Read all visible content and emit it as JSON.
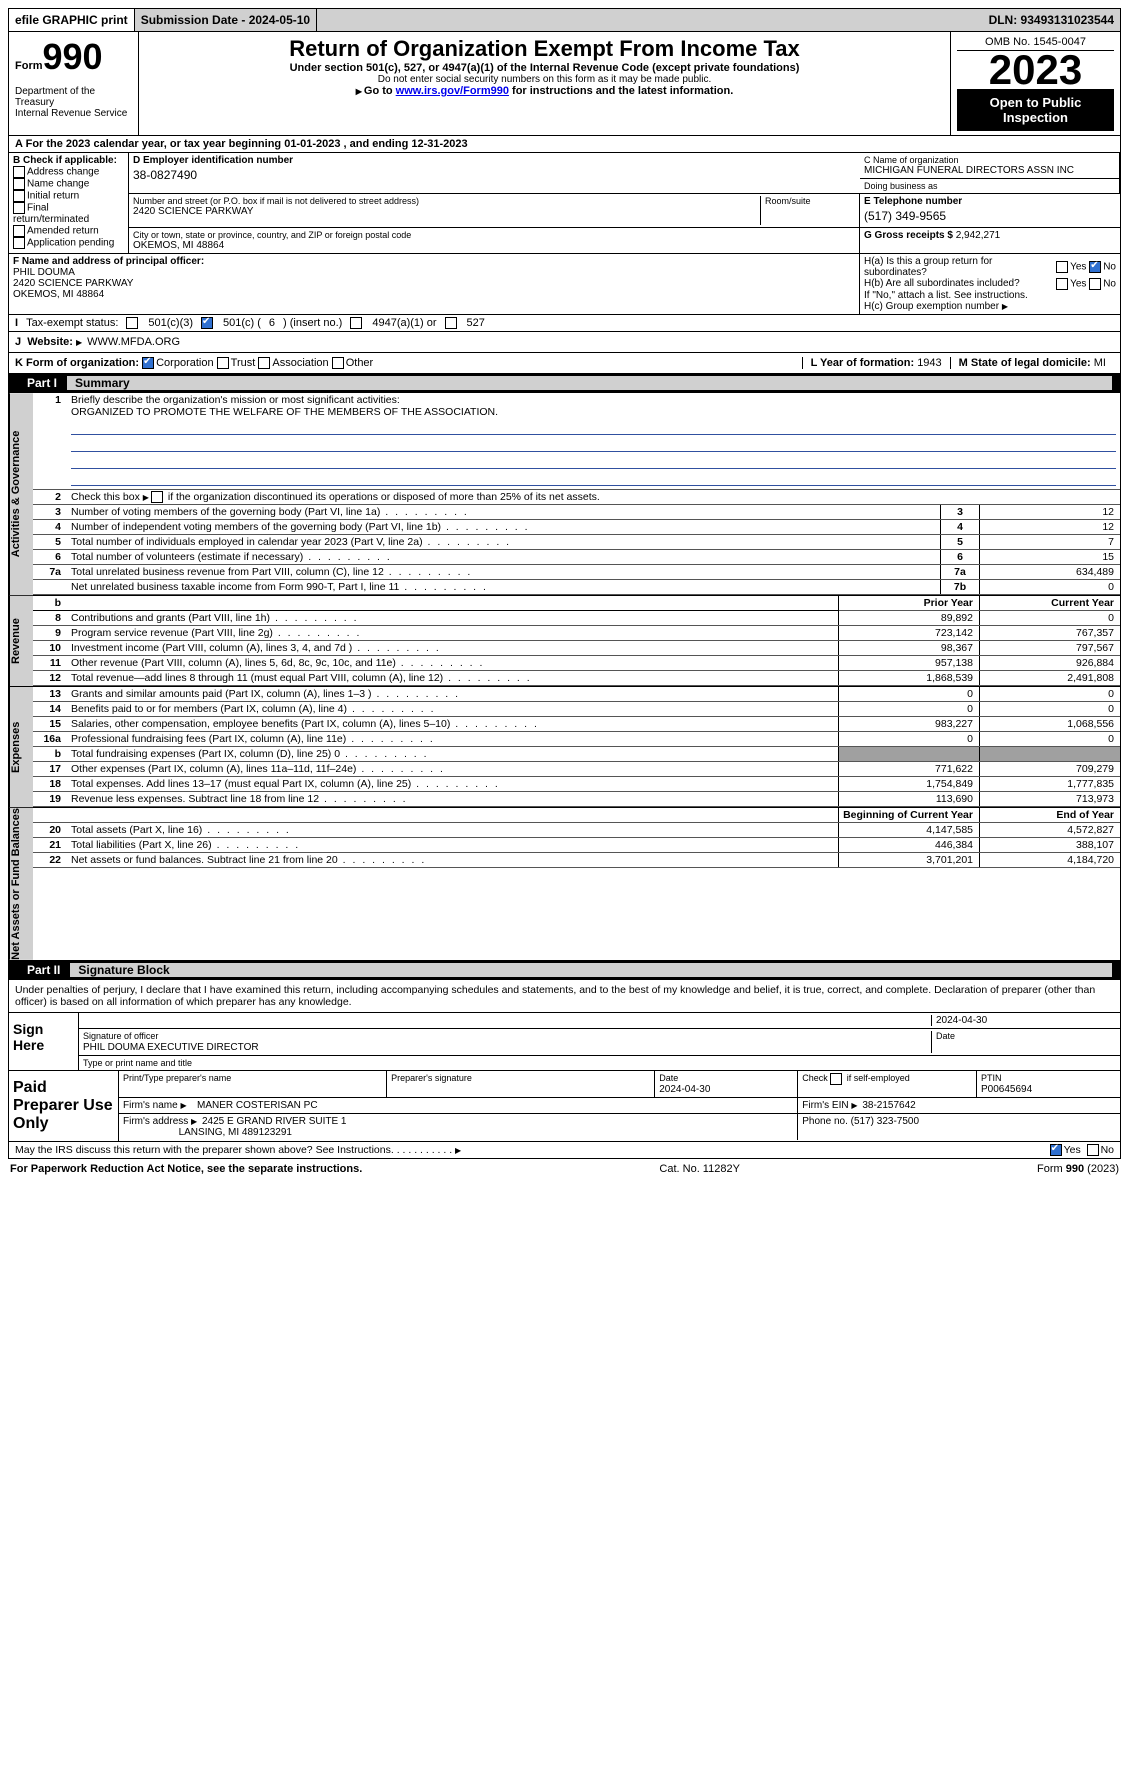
{
  "colors": {
    "header_bg": "#d0d0d0",
    "black": "#000000",
    "check_blue": "#3070d0",
    "link": "#0000ee",
    "mission_rule": "#3050a0",
    "shaded": "#a0a0a0"
  },
  "topbar": {
    "efile_label": "efile GRAPHIC print",
    "submission": "Submission Date - 2024-05-10",
    "dln": "DLN: 93493131023544"
  },
  "header": {
    "form_prefix": "Form",
    "form_number": "990",
    "dept1": "Department of the Treasury",
    "dept2": "Internal Revenue Service",
    "title": "Return of Organization Exempt From Income Tax",
    "subtitle": "Under section 501(c), 527, or 4947(a)(1) of the Internal Revenue Code (except private foundations)",
    "warn": "Do not enter social security numbers on this form as it may be made public.",
    "goto_prefix": "Go to ",
    "goto_link": "www.irs.gov/Form990",
    "goto_suffix": " for instructions and the latest information.",
    "omb": "OMB No. 1545-0047",
    "year": "2023",
    "open": "Open to Public Inspection"
  },
  "line_a": "For the 2023 calendar year, or tax year beginning 01-01-2023    , and ending 12-31-2023",
  "box_b": {
    "title": "B Check if applicable:",
    "opts": [
      "Address change",
      "Name change",
      "Initial return",
      "Final return/terminated",
      "Amended return",
      "Application pending"
    ]
  },
  "box_c": {
    "name_lbl": "C Name of organization",
    "name": "MICHIGAN FUNERAL DIRECTORS ASSN INC",
    "dba_lbl": "Doing business as",
    "dba": "",
    "addr_lbl": "Number and street (or P.O. box if mail is not delivered to street address)",
    "addr": "2420 SCIENCE PARKWAY",
    "room_lbl": "Room/suite",
    "room": "",
    "city_lbl": "City or town, state or province, country, and ZIP or foreign postal code",
    "city": "OKEMOS, MI  48864"
  },
  "box_d": {
    "lbl": "D Employer identification number",
    "val": "38-0827490"
  },
  "box_e": {
    "lbl": "E Telephone number",
    "val": "(517) 349-9565"
  },
  "box_g": {
    "lbl": "G Gross receipts $",
    "val": "2,942,271"
  },
  "box_f": {
    "lbl": "F  Name and address of principal officer:",
    "l1": "PHIL DOUMA",
    "l2": "2420 SCIENCE PARKWAY",
    "l3": "OKEMOS, MI  48864"
  },
  "box_h": {
    "a_lbl": "H(a)  Is this a group return for subordinates?",
    "a_yes": "Yes",
    "a_no": "No",
    "b_lbl": "H(b)  Are all subordinates included?",
    "b_yes": "Yes",
    "b_no": "No",
    "b_note": "If \"No,\" attach a list. See instructions.",
    "c_lbl": "H(c)  Group exemption number"
  },
  "row_i": {
    "lbl": "Tax-exempt status:",
    "o1": "501(c)(3)",
    "o2a": "501(c) (",
    "o2b": "6",
    "o2c": ") (insert no.)",
    "o3": "4947(a)(1) or",
    "o4": "527"
  },
  "row_j": {
    "lbl": "Website:",
    "val": "WWW.MFDA.ORG"
  },
  "row_k": {
    "lbl": "K Form of organization:",
    "o1": "Corporation",
    "o2": "Trust",
    "o3": "Association",
    "o4": "Other",
    "l_lbl": "L Year of formation:",
    "l_val": "1943",
    "m_lbl": "M State of legal domicile:",
    "m_val": "MI"
  },
  "part1": {
    "hdr": "Part I",
    "title": "Summary",
    "q1_lbl": "Briefly describe the organization's mission or most significant activities:",
    "q1_val": "ORGANIZED TO PROMOTE THE WELFARE OF THE MEMBERS OF THE ASSOCIATION.",
    "q2": "Check this box       if the organization discontinued its operations or disposed of more than 25% of its net assets.",
    "side_gov": "Activities & Governance",
    "side_rev": "Revenue",
    "side_exp": "Expenses",
    "side_net": "Net Assets or Fund Balances",
    "rows_single": [
      {
        "n": "3",
        "d": "Number of voting members of the governing body (Part VI, line 1a)",
        "box": "3",
        "v": "12"
      },
      {
        "n": "4",
        "d": "Number of independent voting members of the governing body (Part VI, line 1b)",
        "box": "4",
        "v": "12"
      },
      {
        "n": "5",
        "d": "Total number of individuals employed in calendar year 2023 (Part V, line 2a)",
        "box": "5",
        "v": "7"
      },
      {
        "n": "6",
        "d": "Total number of volunteers (estimate if necessary)",
        "box": "6",
        "v": "15"
      },
      {
        "n": "7a",
        "d": "Total unrelated business revenue from Part VIII, column (C), line 12",
        "box": "7a",
        "v": "634,489"
      },
      {
        "n": "",
        "d": "Net unrelated business taxable income from Form 990-T, Part I, line 11",
        "box": "7b",
        "v": "0"
      }
    ],
    "col_prior": "Prior Year",
    "col_curr": "Current Year",
    "rows_rev": [
      {
        "n": "8",
        "d": "Contributions and grants (Part VIII, line 1h)",
        "p": "89,892",
        "c": "0"
      },
      {
        "n": "9",
        "d": "Program service revenue (Part VIII, line 2g)",
        "p": "723,142",
        "c": "767,357"
      },
      {
        "n": "10",
        "d": "Investment income (Part VIII, column (A), lines 3, 4, and 7d )",
        "p": "98,367",
        "c": "797,567"
      },
      {
        "n": "11",
        "d": "Other revenue (Part VIII, column (A), lines 5, 6d, 8c, 9c, 10c, and 11e)",
        "p": "957,138",
        "c": "926,884"
      },
      {
        "n": "12",
        "d": "Total revenue—add lines 8 through 11 (must equal Part VIII, column (A), line 12)",
        "p": "1,868,539",
        "c": "2,491,808"
      }
    ],
    "rows_exp": [
      {
        "n": "13",
        "d": "Grants and similar amounts paid (Part IX, column (A), lines 1–3 )",
        "p": "0",
        "c": "0"
      },
      {
        "n": "14",
        "d": "Benefits paid to or for members (Part IX, column (A), line 4)",
        "p": "0",
        "c": "0"
      },
      {
        "n": "15",
        "d": "Salaries, other compensation, employee benefits (Part IX, column (A), lines 5–10)",
        "p": "983,227",
        "c": "1,068,556"
      },
      {
        "n": "16a",
        "d": "Professional fundraising fees (Part IX, column (A), line 11e)",
        "p": "0",
        "c": "0"
      },
      {
        "n": "b",
        "d": "Total fundraising expenses (Part IX, column (D), line 25) 0",
        "p": "",
        "c": "",
        "shaded": true
      },
      {
        "n": "17",
        "d": "Other expenses (Part IX, column (A), lines 11a–11d, 11f–24e)",
        "p": "771,622",
        "c": "709,279"
      },
      {
        "n": "18",
        "d": "Total expenses. Add lines 13–17 (must equal Part IX, column (A), line 25)",
        "p": "1,754,849",
        "c": "1,777,835"
      },
      {
        "n": "19",
        "d": "Revenue less expenses. Subtract line 18 from line 12",
        "p": "113,690",
        "c": "713,973"
      }
    ],
    "col_beg": "Beginning of Current Year",
    "col_end": "End of Year",
    "rows_net": [
      {
        "n": "20",
        "d": "Total assets (Part X, line 16)",
        "p": "4,147,585",
        "c": "4,572,827"
      },
      {
        "n": "21",
        "d": "Total liabilities (Part X, line 26)",
        "p": "446,384",
        "c": "388,107"
      },
      {
        "n": "22",
        "d": "Net assets or fund balances. Subtract line 21 from line 20",
        "p": "3,701,201",
        "c": "4,184,720"
      }
    ]
  },
  "part2": {
    "hdr": "Part II",
    "title": "Signature Block",
    "decl": "Under penalties of perjury, I declare that I have examined this return, including accompanying schedules and statements, and to the best of my knowledge and belief, it is true, correct, and complete. Declaration of preparer (other than officer) is based on all information of which preparer has any knowledge.",
    "sign_here": "Sign Here",
    "sig_date": "2024-04-30",
    "sig_lbl": "Signature of officer",
    "date_lbl": "Date",
    "officer": "PHIL DOUMA  EXECUTIVE DIRECTOR",
    "officer_lbl": "Type or print name and title",
    "paid": "Paid Preparer Use Only",
    "p_name_lbl": "Print/Type preparer's name",
    "p_sig_lbl": "Preparer's signature",
    "p_date_lbl": "Date",
    "p_date": "2024-04-30",
    "p_check_lbl": "Check        if self-employed",
    "p_ptin_lbl": "PTIN",
    "p_ptin": "P00645694",
    "firm_name_lbl": "Firm's name",
    "firm_name": "MANER COSTERISAN PC",
    "firm_ein_lbl": "Firm's EIN",
    "firm_ein": "38-2157642",
    "firm_addr_lbl": "Firm's address",
    "firm_addr1": "2425 E GRAND RIVER SUITE 1",
    "firm_addr2": "LANSING, MI  489123291",
    "phone_lbl": "Phone no.",
    "phone": "(517) 323-7500",
    "discuss": "May the IRS discuss this return with the preparer shown above? See Instructions.",
    "yes": "Yes",
    "no": "No"
  },
  "footer": {
    "pra": "For Paperwork Reduction Act Notice, see the separate instructions.",
    "cat": "Cat. No. 11282Y",
    "form": "Form 990 (2023)"
  }
}
